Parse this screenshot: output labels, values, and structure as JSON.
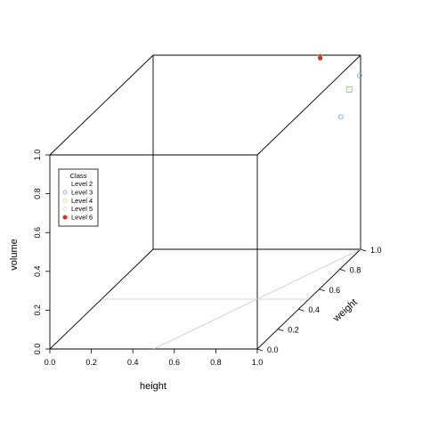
{
  "chart_data": {
    "type": "scatter",
    "subtype": "3d-scatter",
    "xlabel": "height",
    "ylabel": "weight",
    "zlabel": "volume",
    "xlim": [
      0,
      1
    ],
    "ylim": [
      0,
      1
    ],
    "zlim": [
      0,
      1
    ],
    "x_ticks": [
      "0.0",
      "0.2",
      "0.4",
      "0.6",
      "0.8",
      "1.0"
    ],
    "y_ticks": [
      "0.0",
      "0.2",
      "0.4",
      "0.6",
      "0.8",
      "1.0"
    ],
    "z_ticks": [
      "0.0",
      "0.2",
      "0.4",
      "0.6",
      "0.8",
      "1.0"
    ],
    "grid": "partial",
    "legend_position": "top-left",
    "legend": {
      "title": "Class",
      "entries": [
        {
          "label": "Level 2",
          "color": "#ffffff",
          "marker": "none"
        },
        {
          "label": "Level 3",
          "color": "#6baed6",
          "marker": "open-circle"
        },
        {
          "label": "Level 4",
          "color": "#e6d98c",
          "marker": "open-circle"
        },
        {
          "label": "Level 5",
          "color": "#cfe3b6",
          "marker": "open-circle"
        },
        {
          "label": "Level 6",
          "color": "#d62f1f",
          "marker": "filled-circle"
        }
      ]
    },
    "series": [
      {
        "name": "Level 4",
        "color": "#f0a050",
        "marker": "open-circle",
        "points": [
          {
            "x": 0.81,
            "y": 0.99,
            "z": 1.0
          }
        ]
      },
      {
        "name": "Level 6",
        "color": "#d62f1f",
        "marker": "filled-circle",
        "points": [
          {
            "x": 0.81,
            "y": 0.99,
            "z": 0.99
          }
        ]
      },
      {
        "name": "Level 5",
        "color": "#8fcf6a",
        "marker": "open-square",
        "points": [
          {
            "x": 1.0,
            "y": 0.89,
            "z": 0.88
          }
        ]
      },
      {
        "name": "Level 3",
        "color": "#6baed6",
        "marker": "open-circle",
        "points": [
          {
            "x": 1.0,
            "y": 0.81,
            "z": 0.78
          },
          {
            "x": 1.0,
            "y": 0.99,
            "z": 0.9
          }
        ]
      }
    ]
  }
}
